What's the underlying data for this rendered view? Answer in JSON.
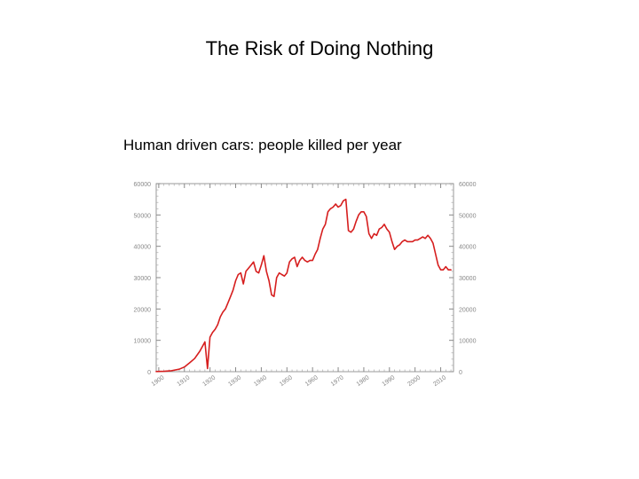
{
  "slide": {
    "title": "The Risk of Doing Nothing"
  },
  "chart_data": {
    "type": "line",
    "title": "Human driven cars: people killed per year",
    "xlabel": "",
    "ylabel": "",
    "xlim": [
      1899,
      2015
    ],
    "ylim": [
      0,
      60000
    ],
    "x_ticks": [
      1900,
      1910,
      1920,
      1930,
      1940,
      1950,
      1960,
      1970,
      1980,
      1990,
      2000,
      2010
    ],
    "y_ticks": [
      0,
      10000,
      20000,
      30000,
      40000,
      50000,
      60000
    ],
    "grid": false,
    "line_color": "#d61e1e",
    "series": [
      {
        "values_x": [
          1899,
          1902,
          1905,
          1908,
          1910,
          1912,
          1914,
          1916,
          1917,
          1918,
          1919,
          1920,
          1921,
          1922,
          1923,
          1924,
          1925,
          1926,
          1927,
          1928,
          1929,
          1930,
          1931,
          1932,
          1933,
          1934,
          1935,
          1936,
          1937,
          1938,
          1939,
          1940,
          1941,
          1942,
          1943,
          1944,
          1945,
          1946,
          1947,
          1948,
          1949,
          1950,
          1951,
          1952,
          1953,
          1954,
          1955,
          1956,
          1957,
          1958,
          1959,
          1960,
          1961,
          1962,
          1963,
          1964,
          1965,
          1966,
          1967,
          1968,
          1969,
          1970,
          1971,
          1972,
          1973,
          1974,
          1975,
          1976,
          1977,
          1978,
          1979,
          1980,
          1981,
          1982,
          1983,
          1984,
          1985,
          1986,
          1987,
          1988,
          1989,
          1990,
          1991,
          1992,
          1993,
          1994,
          1995,
          1996,
          1997,
          1998,
          1999,
          2000,
          2001,
          2002,
          2003,
          2004,
          2005,
          2006,
          2007,
          2008,
          2009,
          2010,
          2011,
          2012,
          2013,
          2014
        ],
        "values_y": [
          50,
          100,
          300,
          800,
          1500,
          2800,
          4200,
          6500,
          8000,
          9500,
          1000,
          11000,
          12500,
          13500,
          15000,
          17500,
          19000,
          20000,
          22000,
          24000,
          26000,
          29000,
          31000,
          31500,
          28000,
          32000,
          33000,
          34000,
          35000,
          32000,
          31500,
          34000,
          37000,
          32000,
          29000,
          24500,
          24000,
          30000,
          31500,
          31000,
          30500,
          31500,
          35000,
          36000,
          36500,
          33500,
          35500,
          36500,
          35500,
          35000,
          35500,
          35500,
          37500,
          39000,
          42500,
          45500,
          47000,
          51000,
          52000,
          52500,
          53500,
          52500,
          53000,
          54500,
          55000,
          45000,
          44500,
          45500,
          48000,
          50000,
          51000,
          51000,
          49500,
          44000,
          42500,
          44000,
          43500,
          45500,
          46000,
          47000,
          45500,
          44500,
          41500,
          39000,
          40000,
          40500,
          41500,
          42000,
          41500,
          41500,
          41500,
          42000,
          42000,
          42500,
          43000,
          42500,
          43500,
          42500,
          41000,
          37500,
          34000,
          32500,
          32500,
          33500,
          32500,
          32500
        ]
      }
    ]
  }
}
